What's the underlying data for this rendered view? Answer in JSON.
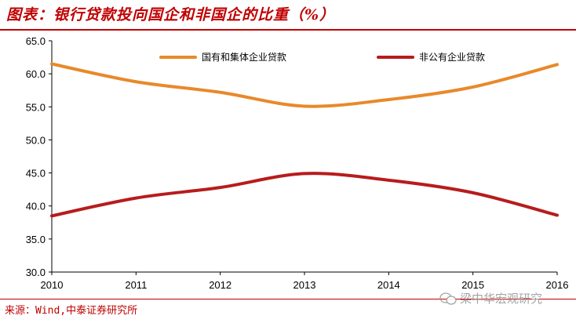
{
  "header": {
    "title": "图表：银行贷款投向国企和非国企的比重（%）"
  },
  "footer": {
    "source": "来源：Wind,中泰证券研究所",
    "watermark": "梁中华宏观研究"
  },
  "colors": {
    "accent": "#c00000",
    "series_soe": "#e8892b",
    "series_private": "#b71c1c"
  },
  "chart_data": {
    "type": "line",
    "x": [
      "2010",
      "2011",
      "2012",
      "2013",
      "2014",
      "2015",
      "2016"
    ],
    "series": [
      {
        "name": "国有和集体企业贷款",
        "values": [
          61.5,
          58.8,
          57.2,
          55.1,
          56.1,
          58.0,
          61.4
        ]
      },
      {
        "name": "非公有企业贷款",
        "values": [
          38.5,
          41.2,
          42.8,
          44.9,
          43.9,
          42.0,
          38.6
        ]
      }
    ],
    "ylim": [
      30,
      65
    ],
    "yticks": [
      "30.0",
      "35.0",
      "40.0",
      "45.0",
      "50.0",
      "55.0",
      "60.0",
      "65.0"
    ],
    "legend": "top",
    "grid": false
  }
}
